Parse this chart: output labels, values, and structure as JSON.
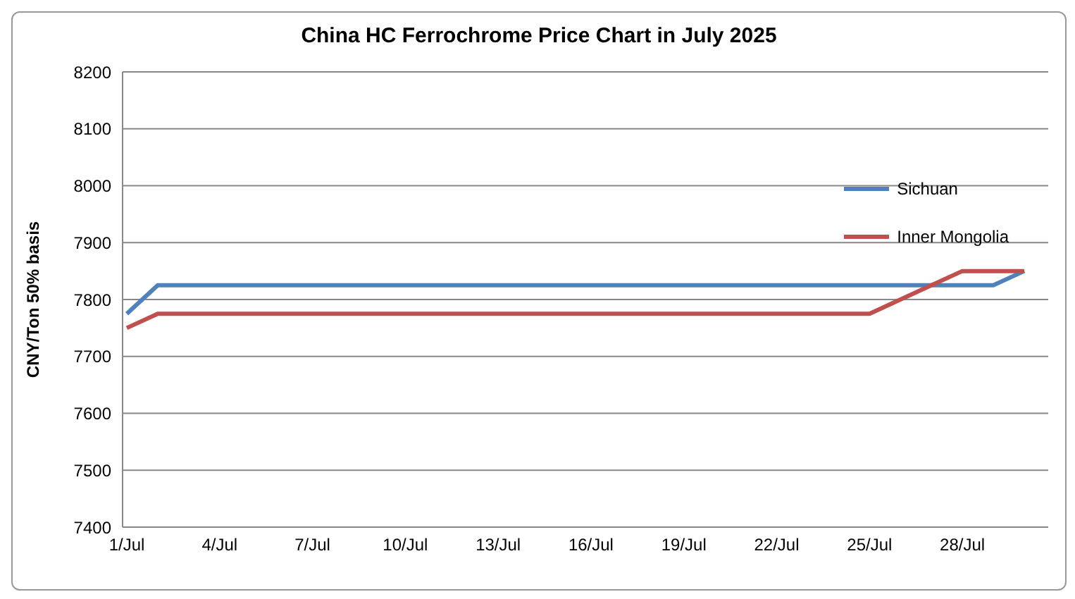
{
  "chart_data": {
    "type": "line",
    "title": "China HC Ferrochrome Price Chart in July 2025",
    "ylabel": "CNY/Ton 50% basis",
    "categories": [
      "1/Jul",
      null,
      null,
      "4/Jul",
      null,
      null,
      "7/Jul",
      null,
      null,
      "10/Jul",
      null,
      null,
      "13/Jul",
      null,
      null,
      "16/Jul",
      null,
      null,
      "19/Jul",
      null,
      null,
      "22/Jul",
      null,
      null,
      "25/Jul",
      null,
      null,
      "28/Jul",
      null,
      null
    ],
    "series": [
      {
        "name": "Sichuan",
        "color": "#4f81bd",
        "values": [
          7775,
          7825,
          7825,
          7825,
          7825,
          7825,
          7825,
          7825,
          7825,
          7825,
          7825,
          7825,
          7825,
          7825,
          7825,
          7825,
          7825,
          7825,
          7825,
          7825,
          7825,
          7825,
          7825,
          7825,
          7825,
          7825,
          7825,
          7825,
          7825,
          7850
        ]
      },
      {
        "name": "Inner Mongolia",
        "color": "#c0504d",
        "values": [
          7750,
          7775,
          7775,
          7775,
          7775,
          7775,
          7775,
          7775,
          7775,
          7775,
          7775,
          7775,
          7775,
          7775,
          7775,
          7775,
          7775,
          7775,
          7775,
          7775,
          7775,
          7775,
          7775,
          7775,
          7775,
          7800,
          7825,
          7850,
          7850,
          7850
        ]
      }
    ],
    "ylim": [
      7400,
      8200
    ],
    "yticks": [
      7400,
      7500,
      7600,
      7700,
      7800,
      7900,
      8000,
      8100,
      8200
    ],
    "grid": "y",
    "legend": "right",
    "marker": "none"
  }
}
